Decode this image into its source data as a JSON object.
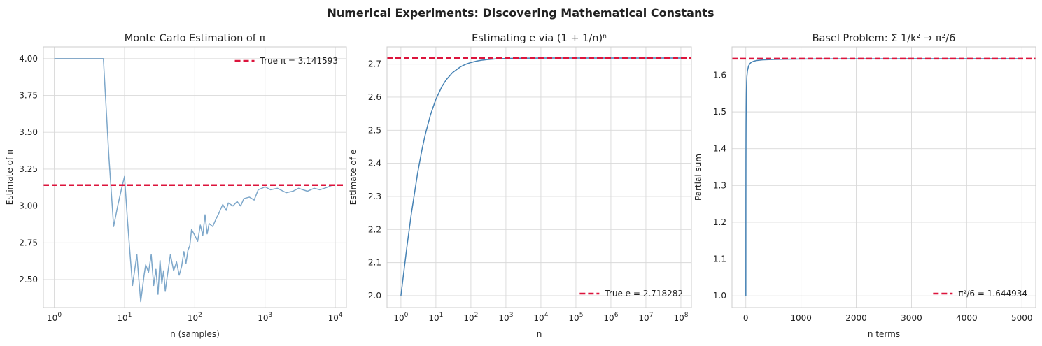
{
  "suptitle": "Numerical Experiments: Discovering Mathematical Constants",
  "colors": {
    "series": "#4682b4",
    "reference": "#dc143c",
    "grid": "#d9d9d9",
    "spine": "#cccccc"
  },
  "chart_data": [
    {
      "type": "line",
      "title": "Monte Carlo Estimation of π",
      "xlabel": "n (samples)",
      "ylabel": "Estimate of π",
      "xscale": "log",
      "xlim": [
        0.7,
        14400
      ],
      "ylim": [
        2.31,
        4.08
      ],
      "xticks": [
        {
          "value": 1,
          "exp": "0"
        },
        {
          "value": 10,
          "exp": "1"
        },
        {
          "value": 100,
          "exp": "2"
        },
        {
          "value": 1000,
          "exp": "3"
        },
        {
          "value": 10000,
          "exp": "4"
        }
      ],
      "yticks": [
        "2.50",
        "2.75",
        "3.00",
        "3.25",
        "3.50",
        "3.75",
        "4.00"
      ],
      "series": [
        {
          "name": "Estimate",
          "alpha": 0.7,
          "x": [
            1,
            2,
            3,
            4,
            5,
            6,
            7,
            8,
            9,
            10,
            11,
            12,
            13,
            14,
            15,
            16,
            17,
            18,
            19,
            20,
            22,
            24,
            26,
            28,
            30,
            32,
            34,
            36,
            38,
            40,
            45,
            50,
            55,
            60,
            65,
            70,
            75,
            80,
            85,
            90,
            100,
            110,
            120,
            130,
            140,
            150,
            160,
            180,
            200,
            220,
            250,
            280,
            300,
            350,
            400,
            450,
            500,
            600,
            700,
            800,
            900,
            1000,
            1200,
            1500,
            2000,
            2500,
            3000,
            4000,
            5000,
            6000,
            7000,
            8000,
            9000,
            10000
          ],
          "values": [
            4.0,
            4.0,
            4.0,
            4.0,
            4.0,
            3.33,
            2.86,
            3.0,
            3.11,
            3.2,
            2.91,
            2.67,
            2.46,
            2.57,
            2.67,
            2.5,
            2.35,
            2.44,
            2.53,
            2.6,
            2.55,
            2.67,
            2.46,
            2.57,
            2.4,
            2.63,
            2.47,
            2.56,
            2.42,
            2.5,
            2.67,
            2.56,
            2.62,
            2.53,
            2.59,
            2.69,
            2.61,
            2.7,
            2.73,
            2.84,
            2.8,
            2.76,
            2.87,
            2.8,
            2.94,
            2.81,
            2.88,
            2.86,
            2.91,
            2.95,
            3.01,
            2.97,
            3.02,
            3.0,
            3.03,
            3.0,
            3.05,
            3.06,
            3.04,
            3.11,
            3.12,
            3.13,
            3.11,
            3.12,
            3.09,
            3.1,
            3.12,
            3.1,
            3.12,
            3.11,
            3.12,
            3.13,
            3.14,
            3.14
          ]
        }
      ],
      "reference": {
        "value": 3.141593,
        "label": "True π = 3.141593"
      },
      "legend": "upper right"
    },
    {
      "type": "line",
      "title": "Estimating e via (1 + 1/n)ⁿ",
      "xlabel": "n",
      "ylabel": "Estimate of e",
      "xscale": "log",
      "xlim": [
        0.4,
        200000000
      ],
      "ylim": [
        1.964,
        2.752
      ],
      "xticks": [
        {
          "value": 1,
          "exp": "0"
        },
        {
          "value": 10,
          "exp": "1"
        },
        {
          "value": 100,
          "exp": "2"
        },
        {
          "value": 1000,
          "exp": "3"
        },
        {
          "value": 10000,
          "exp": "4"
        },
        {
          "value": 100000,
          "exp": "5"
        },
        {
          "value": 1000000,
          "exp": "6"
        },
        {
          "value": 10000000,
          "exp": "7"
        },
        {
          "value": 100000000,
          "exp": "8"
        }
      ],
      "yticks": [
        "2.0",
        "2.1",
        "2.2",
        "2.3",
        "2.4",
        "2.5",
        "2.6",
        "2.7"
      ],
      "series": [
        {
          "name": "(1 + 1/n)^n",
          "alpha": 1.0,
          "x": [
            1,
            1.5,
            2,
            3,
            4,
            5,
            7,
            10,
            15,
            20,
            30,
            50,
            70,
            100,
            150,
            200,
            300,
            500,
            1000,
            2000,
            5000,
            10000,
            100000,
            1000000,
            10000000,
            100000000
          ],
          "values": [
            2.0,
            2.1516,
            2.25,
            2.3704,
            2.4414,
            2.4883,
            2.5465,
            2.5937,
            2.6329,
            2.6533,
            2.6743,
            2.6916,
            2.6992,
            2.7048,
            2.7093,
            2.7115,
            2.7138,
            2.7156,
            2.7169,
            2.7176,
            2.718,
            2.7181,
            2.71827,
            2.71828,
            2.71828,
            2.71828
          ]
        }
      ],
      "reference": {
        "value": 2.718282,
        "label": "True e = 2.718282"
      },
      "legend": "lower right"
    },
    {
      "type": "line",
      "title": "Basel Problem: Σ 1/k² → π²/6",
      "xlabel": "n terms",
      "ylabel": "Partial sum",
      "xscale": "linear",
      "xlim": [
        -250,
        5250
      ],
      "ylim": [
        0.968,
        1.677
      ],
      "xticks": [
        {
          "value": 0,
          "label": "0"
        },
        {
          "value": 1000,
          "label": "1000"
        },
        {
          "value": 2000,
          "label": "2000"
        },
        {
          "value": 3000,
          "label": "3000"
        },
        {
          "value": 4000,
          "label": "4000"
        },
        {
          "value": 5000,
          "label": "5000"
        }
      ],
      "yticks": [
        "1.0",
        "1.1",
        "1.2",
        "1.3",
        "1.4",
        "1.5",
        "1.6"
      ],
      "series": [
        {
          "name": "Partial sum",
          "alpha": 1.0,
          "x": [
            1,
            2,
            3,
            4,
            5,
            7,
            10,
            15,
            20,
            30,
            50,
            75,
            100,
            150,
            200,
            300,
            500,
            750,
            1000,
            2000,
            3000,
            4000,
            5000
          ],
          "values": [
            1.0,
            1.25,
            1.3611,
            1.4236,
            1.4636,
            1.5118,
            1.5498,
            1.5806,
            1.5962,
            1.6122,
            1.6251,
            1.6317,
            1.635,
            1.6383,
            1.6399,
            1.6416,
            1.6429,
            1.6436,
            1.6439,
            1.6444,
            1.6446,
            1.6447,
            1.6447
          ]
        }
      ],
      "reference": {
        "value": 1.644934,
        "label": "π²/6 = 1.644934"
      },
      "legend": "lower right"
    }
  ]
}
